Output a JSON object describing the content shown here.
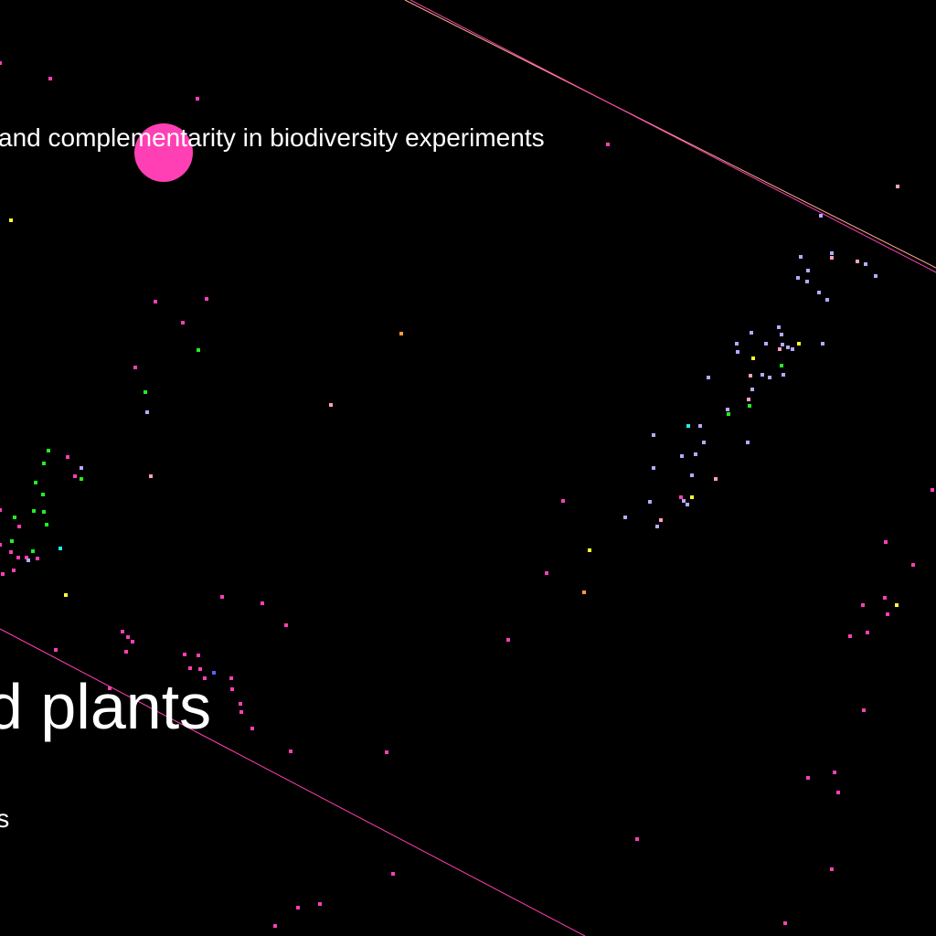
{
  "labels": {
    "complementarity": "and complementarity in biodiversity experiments",
    "plants": "d plants",
    "fragment": "ls"
  },
  "colors": {
    "background": "#000000",
    "magenta": "#ff3fb4",
    "lavender": "#b9a8ff",
    "green": "#22ee22",
    "yellow": "#ffff33",
    "cyan": "#22eeee",
    "orange": "#ff9944",
    "pink": "#ff9fc4",
    "blue": "#5566ff",
    "line_peach": "#ffb08a"
  }
}
